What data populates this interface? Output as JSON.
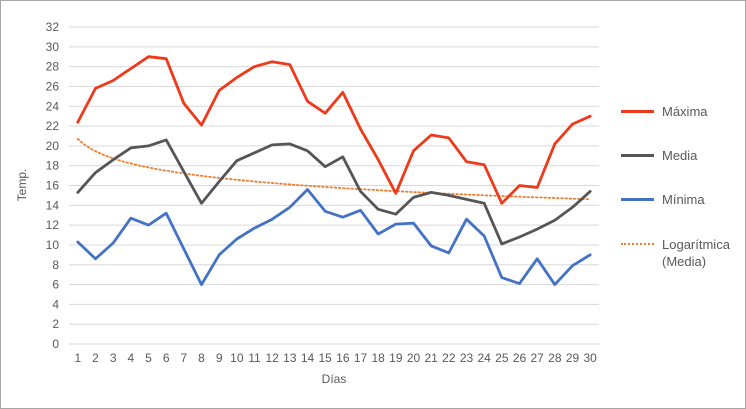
{
  "chart_data": {
    "type": "line",
    "title": "",
    "xlabel": "Días",
    "ylabel": "Temp.",
    "ylim": [
      0,
      32
    ],
    "y_tick_step": 2,
    "y_tick_labels": [
      "0",
      "2",
      "4",
      "6",
      "8",
      "10",
      "12",
      "14",
      "16",
      "18",
      "20",
      "22",
      "24",
      "26",
      "28",
      "30",
      "32"
    ],
    "grid": true,
    "legend_position": "right",
    "categories": [
      "1",
      "2",
      "3",
      "4",
      "5",
      "6",
      "7",
      "8",
      "9",
      "10",
      "11",
      "12",
      "13",
      "14",
      "15",
      "16",
      "17",
      "18",
      "19",
      "20",
      "21",
      "22",
      "23",
      "24",
      "25",
      "26",
      "27",
      "28",
      "29",
      "30"
    ],
    "series": [
      {
        "name": "Máxima",
        "color": "#ee3a1b",
        "values": [
          22.4,
          25.8,
          26.6,
          27.8,
          29.0,
          28.8,
          24.3,
          22.1,
          25.6,
          26.9,
          28.0,
          28.5,
          28.2,
          24.5,
          23.3,
          25.4,
          21.7,
          18.6,
          15.2,
          19.5,
          21.1,
          20.8,
          18.4,
          18.1,
          14.2,
          16.0,
          15.8,
          20.2,
          22.2,
          23.0
        ]
      },
      {
        "name": "Media",
        "color": "#565656",
        "values": [
          15.3,
          17.3,
          18.6,
          19.8,
          20.0,
          20.6,
          17.4,
          14.2,
          16.4,
          18.5,
          19.3,
          20.1,
          20.2,
          19.5,
          17.9,
          18.9,
          15.4,
          13.6,
          13.1,
          14.8,
          15.3,
          15.0,
          14.6,
          14.2,
          10.1,
          10.8,
          11.6,
          12.5,
          13.8,
          15.4
        ]
      },
      {
        "name": "Mínima",
        "color": "#4472c4",
        "values": [
          10.3,
          8.6,
          10.2,
          12.7,
          12.0,
          13.2,
          9.6,
          6.0,
          9.0,
          10.6,
          11.7,
          12.6,
          13.8,
          15.6,
          13.4,
          12.8,
          13.5,
          11.1,
          12.1,
          12.2,
          9.9,
          9.2,
          12.6,
          10.9,
          6.7,
          6.1,
          8.6,
          6.0,
          7.9,
          9.0
        ]
      }
    ],
    "trendline": {
      "name": "Logarítmica (Media)",
      "legend_label": "Logarítmica\n(Media)",
      "color": "#ed7d31",
      "fit": "logarithmic",
      "a": 20.7,
      "b": -1.79
    }
  },
  "colors": {
    "grid": "#d9d9d9",
    "text": "#595959",
    "border": "#a6a6a6",
    "background": "#ffffff"
  }
}
